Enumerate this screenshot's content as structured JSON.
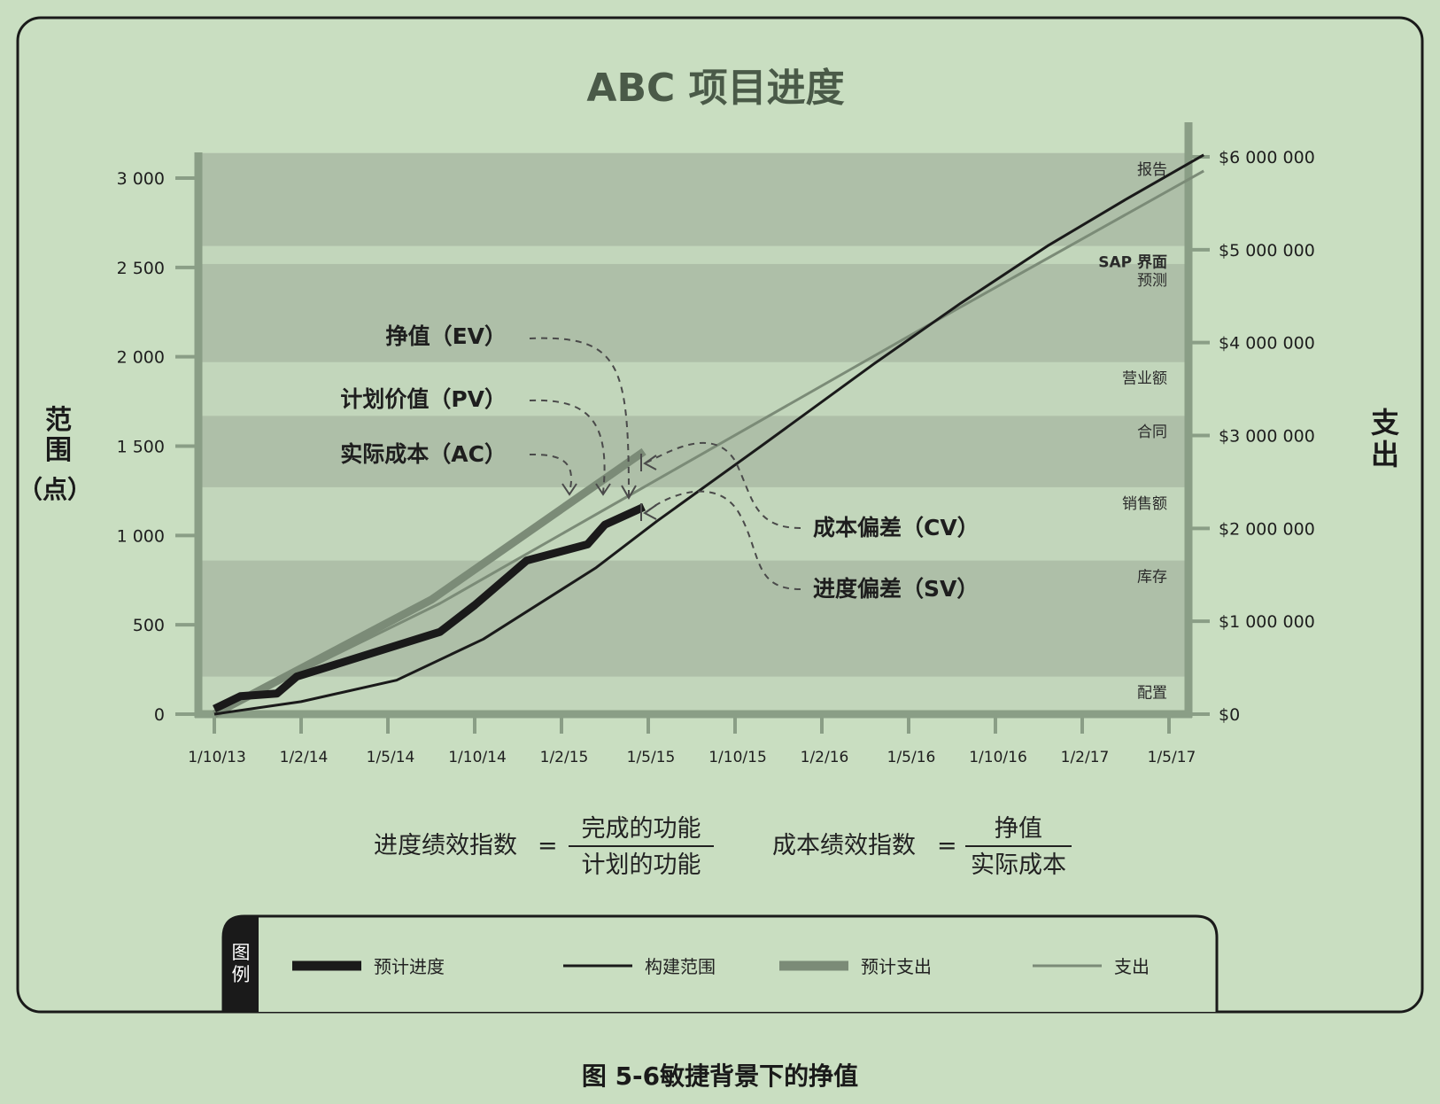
{
  "chart_data": {
    "type": "line",
    "title": "ABC 项目进度",
    "ylabel_left": [
      "范",
      "围",
      "（点）"
    ],
    "ylabel_right": [
      "支",
      "出"
    ],
    "x_ticks": [
      "1/10/13",
      "1/2/14",
      "1/5/14",
      "1/10/14",
      "1/2/15",
      "1/5/15",
      "1/10/15",
      "1/2/16",
      "1/5/16",
      "1/10/16",
      "1/2/17",
      "1/5/17"
    ],
    "y_left_ticks": [
      {
        "value": 0,
        "label": "0"
      },
      {
        "value": 500,
        "label": "500"
      },
      {
        "value": 1000,
        "label": "1 000"
      },
      {
        "value": 1500,
        "label": "1 500"
      },
      {
        "value": 2000,
        "label": "2 000"
      },
      {
        "value": 2500,
        "label": "2 500"
      },
      {
        "value": 3000,
        "label": "3 000"
      }
    ],
    "y_right_ticks": [
      {
        "value": 0,
        "label": "$0"
      },
      {
        "value": 1000000,
        "label": "$1 000 000"
      },
      {
        "value": 2000000,
        "label": "$2 000 000"
      },
      {
        "value": 3000000,
        "label": "$3 000 000"
      },
      {
        "value": 4000000,
        "label": "$4 000 000"
      },
      {
        "value": 5000000,
        "label": "$5 000 000"
      },
      {
        "value": 6000000,
        "label": "$6 000 000"
      }
    ],
    "ylim_left": [
      0,
      3000
    ],
    "ylim_right": [
      0,
      6000000
    ],
    "bands": [
      {
        "label": "配置",
        "top": 210,
        "dark": false
      },
      {
        "label": "库存",
        "top": 860,
        "dark": true
      },
      {
        "label": "销售额",
        "top": 1270,
        "dark": false
      },
      {
        "label": "合同",
        "top": 1670,
        "dark": true
      },
      {
        "label": "营业额",
        "top": 1970,
        "dark": false
      },
      {
        "label": "预测",
        "top": 2520,
        "dark": true
      },
      {
        "label": "SAP 界面",
        "top": 2620,
        "dark": false
      },
      {
        "label": "报告",
        "top": 3140,
        "dark": true
      }
    ],
    "series": [
      {
        "name": "预计进度",
        "color": "#1a1a1a",
        "style": "thick",
        "points": [
          [
            0,
            30
          ],
          [
            0.3,
            100
          ],
          [
            0.72,
            115
          ],
          [
            0.95,
            210
          ],
          [
            2.6,
            460
          ],
          [
            3.0,
            610
          ],
          [
            3.6,
            860
          ],
          [
            4.3,
            950
          ],
          [
            4.5,
            1060
          ],
          [
            4.95,
            1160
          ]
        ]
      },
      {
        "name": "构建范围",
        "color": "#1a1a1a",
        "style": "thin",
        "points": [
          [
            0,
            0
          ],
          [
            1.0,
            70
          ],
          [
            2.1,
            190
          ],
          [
            3.1,
            420
          ],
          [
            4.4,
            820
          ],
          [
            5.1,
            1080
          ],
          [
            6.3,
            1500
          ],
          [
            7.6,
            1960
          ],
          [
            8.6,
            2300
          ],
          [
            9.6,
            2620
          ],
          [
            10.5,
            2880
          ],
          [
            11.4,
            3130
          ]
        ]
      },
      {
        "name": "预计支出",
        "color": "#7b8b77",
        "style": "thick",
        "points": [
          [
            0,
            0
          ],
          [
            2.5,
            640
          ],
          [
            4.95,
            1470
          ]
        ]
      },
      {
        "name": "支出",
        "color": "#7b8b77",
        "style": "thin",
        "points": [
          [
            0,
            0
          ],
          [
            2.6,
            620
          ],
          [
            5.2,
            1340
          ],
          [
            8.2,
            2170
          ],
          [
            11.4,
            3040
          ]
        ]
      }
    ],
    "annotations": [
      {
        "key": "ev",
        "label": "挣值（EV）"
      },
      {
        "key": "pv",
        "label": "计划价值（PV）"
      },
      {
        "key": "ac",
        "label": "实际成本（AC）"
      },
      {
        "key": "cv",
        "label": "成本偏差（CV）"
      },
      {
        "key": "sv",
        "label": "进度偏差（SV）"
      }
    ]
  },
  "formulas": {
    "spi": {
      "name": "进度绩效指数",
      "eq": "=",
      "numerator": "完成的功能",
      "denominator": "计划的功能"
    },
    "cpi": {
      "name": "成本绩效指数",
      "eq": "=",
      "numerator": "挣值",
      "denominator": "实际成本"
    }
  },
  "legend": {
    "tab": [
      "图",
      "例"
    ],
    "items": [
      {
        "label": "预计进度",
        "color": "#1a1a1a",
        "style": "thick"
      },
      {
        "label": "构建范围",
        "color": "#1a1a1a",
        "style": "thin"
      },
      {
        "label": "预计支出",
        "color": "#7b8b77",
        "style": "thick"
      },
      {
        "label": "支出",
        "color": "#7b8b77",
        "style": "thin"
      }
    ]
  },
  "caption": "图 5-6敏捷背景下的挣值",
  "colors": {
    "background": "#c9dec1",
    "band_dark": "#aebfa8",
    "band_light": "#c2d6bb",
    "axis": "#8a9e86",
    "dark": "#1a1a1a",
    "grey": "#7b8b77"
  }
}
